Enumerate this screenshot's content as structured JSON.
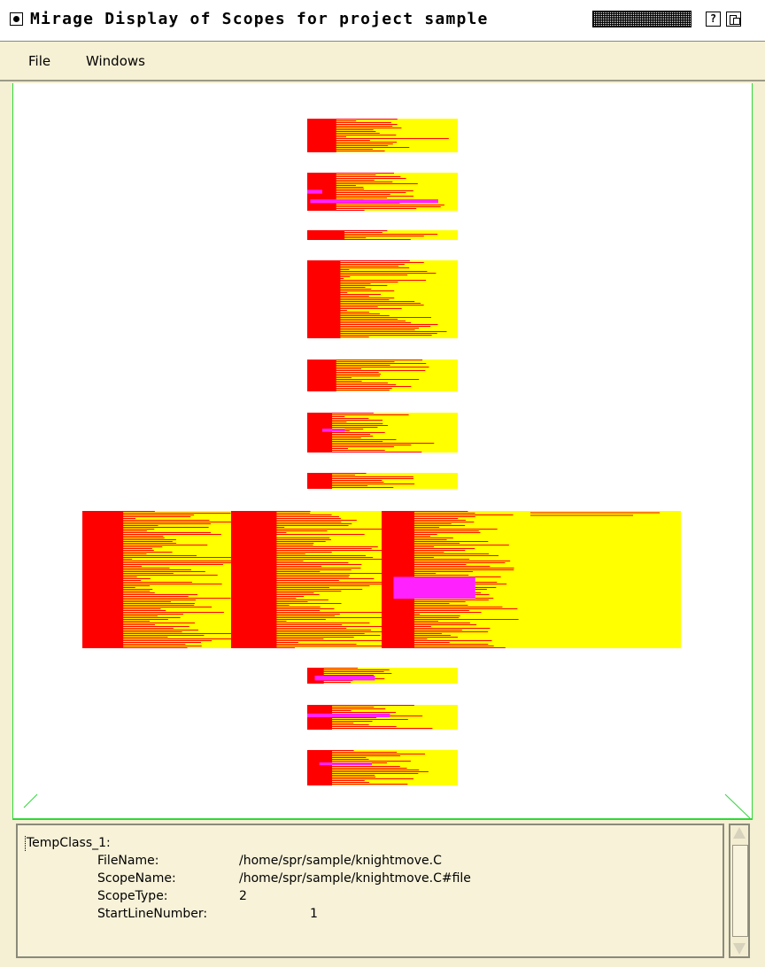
{
  "window": {
    "title": "Mirage Display of Scopes for project sample",
    "help_icon": "?"
  },
  "menu": {
    "items": [
      "File",
      "Windows"
    ]
  },
  "colors": {
    "background": "#f5efd3",
    "canvas_border": "#2fd83a",
    "scope_fill": "#ffff00",
    "scope_line": "#ff0000",
    "scope_highlight": "#ff22ff"
  },
  "info": {
    "heading": "TempClass_1:",
    "fields": [
      {
        "label": "FileName:",
        "value": "/home/spr/sample/knightmove.C"
      },
      {
        "label": "ScopeName:",
        "value": "/home/spr/sample/knightmove.C#file"
      },
      {
        "label": "ScopeType:",
        "value": "2"
      },
      {
        "label": "StartLineNumber:",
        "value": "1"
      }
    ]
  },
  "icons": {
    "close": "window-menu-icon",
    "grip": "title-grip-icon",
    "help": "help-icon",
    "maximize": "maximize-icon",
    "scroll_up": "scroll-up-arrow-icon",
    "scroll_down": "scroll-down-arrow-icon"
  }
}
